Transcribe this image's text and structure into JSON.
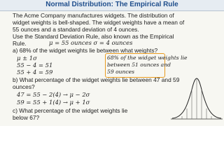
{
  "header": {
    "title": "Normal Distribution:  The Empirical Rule"
  },
  "problem": {
    "lines": [
      "The Acme Company manufactures widgets.  The distribution of",
      "widget weights is bell-shaped.  The widget weights have a mean of",
      "55 ounces and a standard deviation of 4 ounces.",
      "Use the Standard Deviation Rule, also known as the Empirical",
      "Rule."
    ]
  },
  "givens": "μ = 55 ounces    σ = 4 ounces",
  "part_a": {
    "question": "a) 68% of the widget weights lie between what weights?",
    "work": [
      "μ ± 1σ",
      "55 − 4 = 51",
      "55 + 4 = 59"
    ],
    "answer": [
      "68% of the widget weights lie",
      "between  51 ounces and",
      "59 ounces"
    ]
  },
  "part_b": {
    "question": [
      "b) What percentage of the widget weights lie between 47 and 59",
      "ounces?"
    ],
    "work": [
      "47 = 55 − 2(4)  →  μ − 2σ",
      "59 = 55 + 1(4)  →  μ + 1σ"
    ]
  },
  "part_c": {
    "question": [
      "c) What percentage of the widget weights lie",
      "below 67?"
    ]
  }
}
